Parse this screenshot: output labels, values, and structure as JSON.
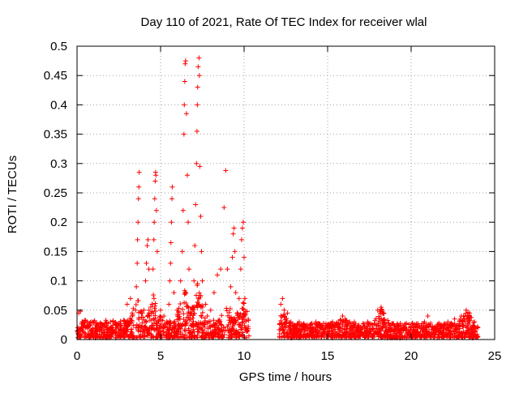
{
  "chart_data": {
    "type": "scatter",
    "title": "Day 110 of 2021, Rate Of TEC Index for receiver wlal",
    "xlabel": "GPS time / hours",
    "ylabel": "ROTI / TECUs",
    "xlim": [
      0,
      25
    ],
    "ylim": [
      0,
      0.5
    ],
    "x_ticks": [
      0,
      5,
      10,
      15,
      20,
      25
    ],
    "y_ticks": [
      0,
      0.05,
      0.1,
      0.15,
      0.2,
      0.25,
      0.3,
      0.35,
      0.4,
      0.45,
      0.5
    ],
    "x_tick_labels": [
      "0",
      "5",
      "10",
      "15",
      "20",
      "25"
    ],
    "y_tick_labels": [
      "0",
      "0.05",
      "0.1",
      "0.15",
      "0.2",
      "0.25",
      "0.3",
      "0.35",
      "0.4",
      "0.45",
      "0.5"
    ],
    "grid": true,
    "marker": "plus",
    "color": "#ff0000",
    "series": [
      {
        "points": [
          [
            0.05,
            0.02
          ],
          [
            0.1,
            0.045
          ],
          [
            0.2,
            0.048
          ],
          [
            0.3,
            0.03
          ],
          [
            0.5,
            0.02
          ],
          [
            0.8,
            0.025
          ],
          [
            1.0,
            0.03
          ],
          [
            1.3,
            0.02
          ],
          [
            1.6,
            0.025
          ],
          [
            2.0,
            0.03
          ],
          [
            2.3,
            0.02
          ],
          [
            2.6,
            0.028
          ],
          [
            3.0,
            0.06
          ],
          [
            3.2,
            0.07
          ],
          [
            3.3,
            0.045
          ],
          [
            3.5,
            0.05
          ],
          [
            3.55,
            0.09
          ],
          [
            3.6,
            0.13
          ],
          [
            3.62,
            0.17
          ],
          [
            3.65,
            0.2
          ],
          [
            3.68,
            0.24
          ],
          [
            3.7,
            0.26
          ],
          [
            3.72,
            0.285
          ],
          [
            4.0,
            0.05
          ],
          [
            4.1,
            0.1
          ],
          [
            4.15,
            0.13
          ],
          [
            4.2,
            0.16
          ],
          [
            4.25,
            0.17
          ],
          [
            4.3,
            0.12
          ],
          [
            4.5,
            0.06
          ],
          [
            4.55,
            0.12
          ],
          [
            4.6,
            0.17
          ],
          [
            4.62,
            0.2
          ],
          [
            4.65,
            0.24
          ],
          [
            4.68,
            0.27
          ],
          [
            4.7,
            0.285
          ],
          [
            4.72,
            0.28
          ],
          [
            4.75,
            0.22
          ],
          [
            4.8,
            0.15
          ],
          [
            5.0,
            0.05
          ],
          [
            5.2,
            0.04
          ],
          [
            5.5,
            0.06
          ],
          [
            5.55,
            0.1
          ],
          [
            5.6,
            0.13
          ],
          [
            5.62,
            0.165
          ],
          [
            5.65,
            0.2
          ],
          [
            5.68,
            0.24
          ],
          [
            5.7,
            0.26
          ],
          [
            5.8,
            0.08
          ],
          [
            6.0,
            0.05
          ],
          [
            6.2,
            0.1
          ],
          [
            6.3,
            0.15
          ],
          [
            6.35,
            0.22
          ],
          [
            6.4,
            0.35
          ],
          [
            6.42,
            0.4
          ],
          [
            6.45,
            0.44
          ],
          [
            6.47,
            0.47
          ],
          [
            6.5,
            0.475
          ],
          [
            6.55,
            0.385
          ],
          [
            6.6,
            0.28
          ],
          [
            6.65,
            0.2
          ],
          [
            6.7,
            0.12
          ],
          [
            6.9,
            0.05
          ],
          [
            7.0,
            0.1
          ],
          [
            7.05,
            0.16
          ],
          [
            7.1,
            0.23
          ],
          [
            7.15,
            0.3
          ],
          [
            7.18,
            0.355
          ],
          [
            7.2,
            0.4
          ],
          [
            7.22,
            0.43
          ],
          [
            7.25,
            0.465
          ],
          [
            7.3,
            0.48
          ],
          [
            7.32,
            0.45
          ],
          [
            7.35,
            0.295
          ],
          [
            7.4,
            0.21
          ],
          [
            7.45,
            0.15
          ],
          [
            7.5,
            0.1
          ],
          [
            7.7,
            0.06
          ],
          [
            7.8,
            0.04
          ],
          [
            8.0,
            0.05
          ],
          [
            8.2,
            0.08
          ],
          [
            8.4,
            0.11
          ],
          [
            8.6,
            0.12
          ],
          [
            8.8,
            0.225
          ],
          [
            8.9,
            0.288
          ],
          [
            9.0,
            0.12
          ],
          [
            9.2,
            0.09
          ],
          [
            9.3,
            0.14
          ],
          [
            9.35,
            0.18
          ],
          [
            9.4,
            0.19
          ],
          [
            9.45,
            0.15
          ],
          [
            9.5,
            0.08
          ],
          [
            9.7,
            0.07
          ],
          [
            9.8,
            0.12
          ],
          [
            9.85,
            0.17
          ],
          [
            9.9,
            0.19
          ],
          [
            9.95,
            0.2
          ],
          [
            10.0,
            0.14
          ],
          [
            10.05,
            0.07
          ],
          [
            10.1,
            0.02
          ],
          [
            12.2,
            0.06
          ],
          [
            12.3,
            0.07
          ],
          [
            12.4,
            0.05
          ],
          [
            12.6,
            0.045
          ],
          [
            12.8,
            0.03
          ],
          [
            13.0,
            0.025
          ],
          [
            13.3,
            0.03
          ],
          [
            13.6,
            0.02
          ],
          [
            14.0,
            0.025
          ],
          [
            14.3,
            0.03
          ],
          [
            14.6,
            0.02
          ],
          [
            15.0,
            0.025
          ],
          [
            15.3,
            0.03
          ],
          [
            15.6,
            0.02
          ],
          [
            15.9,
            0.04
          ],
          [
            16.2,
            0.025
          ],
          [
            16.6,
            0.03
          ],
          [
            17.0,
            0.02
          ],
          [
            17.4,
            0.03
          ],
          [
            17.7,
            0.025
          ],
          [
            18.0,
            0.05
          ],
          [
            18.2,
            0.055
          ],
          [
            18.4,
            0.03
          ],
          [
            18.8,
            0.02
          ],
          [
            19.2,
            0.025
          ],
          [
            19.6,
            0.02
          ],
          [
            20.0,
            0.02
          ],
          [
            20.4,
            0.025
          ],
          [
            20.8,
            0.03
          ],
          [
            21.0,
            0.04
          ],
          [
            21.4,
            0.02
          ],
          [
            21.8,
            0.025
          ],
          [
            22.2,
            0.03
          ],
          [
            22.6,
            0.035
          ],
          [
            23.0,
            0.04
          ],
          [
            23.3,
            0.05
          ],
          [
            23.5,
            0.045
          ],
          [
            23.8,
            0.03
          ],
          [
            24.0,
            0.02
          ]
        ]
      }
    ],
    "dense_band": [
      {
        "x_range": [
          0,
          10.3
        ],
        "y_max": 0.03,
        "spikes": [
          [
            3.6,
            0.07
          ],
          [
            4.6,
            0.08
          ],
          [
            6.4,
            0.09
          ],
          [
            7.2,
            0.1
          ],
          [
            9.0,
            0.06
          ],
          [
            9.9,
            0.07
          ]
        ]
      },
      {
        "x_range": [
          12.1,
          24.0
        ],
        "y_max": 0.025,
        "spikes": [
          [
            12.3,
            0.05
          ],
          [
            16.0,
            0.04
          ],
          [
            18.2,
            0.05
          ],
          [
            23.3,
            0.05
          ]
        ]
      }
    ]
  }
}
